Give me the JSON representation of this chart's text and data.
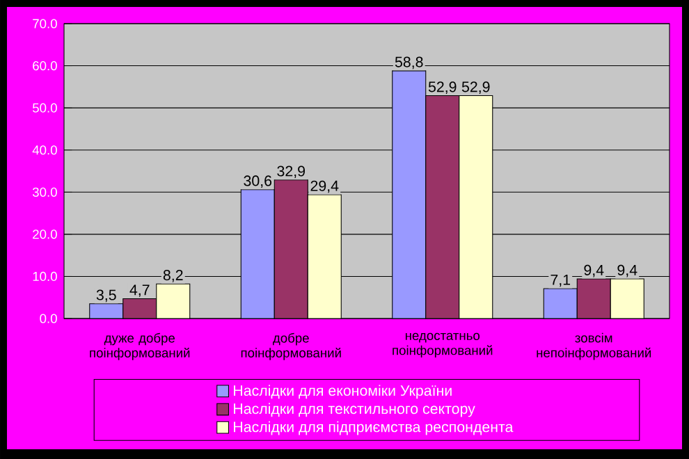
{
  "chart_data": {
    "type": "bar",
    "categories": [
      "дуже добре поінформований",
      "добре поінформований",
      "недостатньо поінформований",
      "зовсім непоінформований"
    ],
    "series": [
      {
        "name": "Наслідки для економіки України",
        "color": "#9999ff",
        "values": [
          3.5,
          30.6,
          58.8,
          7.1
        ],
        "value_labels": [
          "3,5",
          "30,6",
          "58,8",
          "7,1"
        ]
      },
      {
        "name": "Наслідки для текстильного сектору",
        "color": "#993366",
        "values": [
          4.7,
          32.9,
          52.9,
          9.4
        ],
        "value_labels": [
          "4,7",
          "32,9",
          "52,9",
          "9,4"
        ]
      },
      {
        "name": "Наслідки для підприємства респондента",
        "color": "#ffffcc",
        "values": [
          8.2,
          29.4,
          52.9,
          9.4
        ],
        "value_labels": [
          "8,2",
          "29,4",
          "52,9",
          "9,4"
        ]
      }
    ],
    "ylim": [
      0,
      70
    ],
    "yticks": [
      {
        "value": 0,
        "label": "0.0"
      },
      {
        "value": 10,
        "label": "10.0"
      },
      {
        "value": 20,
        "label": "20.0"
      },
      {
        "value": 30,
        "label": "30.0"
      },
      {
        "value": 40,
        "label": "40.0"
      },
      {
        "value": 50,
        "label": "50.0"
      },
      {
        "value": 60,
        "label": "60.0"
      },
      {
        "value": 70,
        "label": "70.0"
      }
    ],
    "grid": "y",
    "legend": "bottom"
  }
}
